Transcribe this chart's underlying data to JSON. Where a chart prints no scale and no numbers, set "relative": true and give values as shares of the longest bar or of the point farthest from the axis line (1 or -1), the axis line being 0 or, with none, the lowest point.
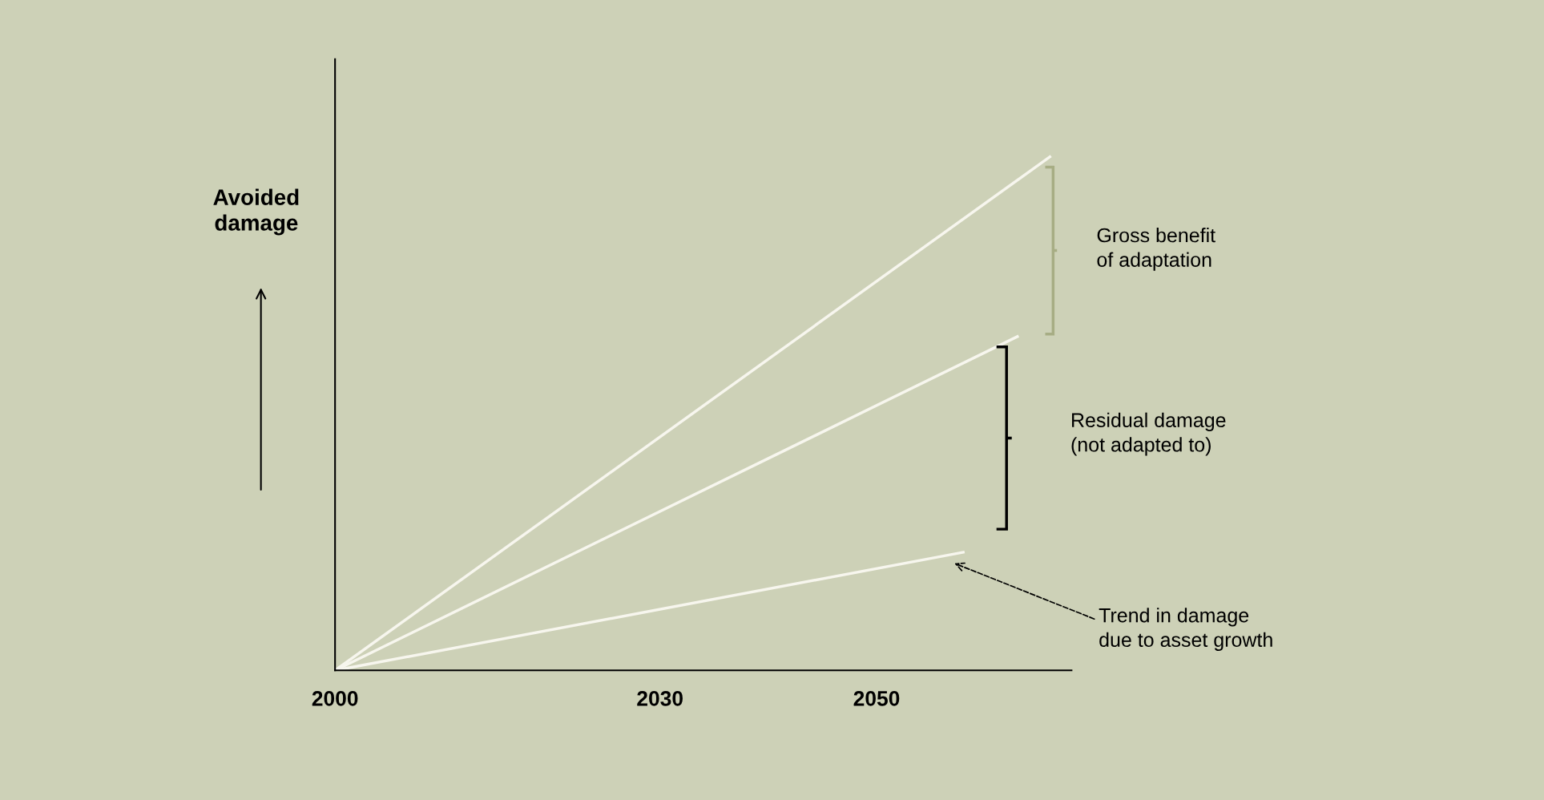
{
  "chart_data": {
    "type": "line",
    "relative": true,
    "ylabel": "Avoided damage",
    "xlim": [
      2000,
      2068
    ],
    "xticks": [
      2000,
      2030,
      2050
    ],
    "series": [
      {
        "color": "#f7f6ee",
        "x": [
          2000,
          2066
        ],
        "values": [
          0,
          1
        ]
      },
      {
        "color": "#f7f6ee",
        "x": [
          2000,
          2063
        ],
        "values": [
          0,
          0.65
        ]
      },
      {
        "color": "#f7f6ee",
        "x": [
          2000,
          2058
        ],
        "values": [
          0,
          0.23
        ]
      }
    ],
    "marker": "none",
    "line_style": "solid",
    "grid": false,
    "legend": false,
    "annotations": [
      "Gross benefit\nof adaptation",
      "Residual damage\n(not adapted to)",
      "Trend in damage\ndue to asset growth"
    ]
  }
}
